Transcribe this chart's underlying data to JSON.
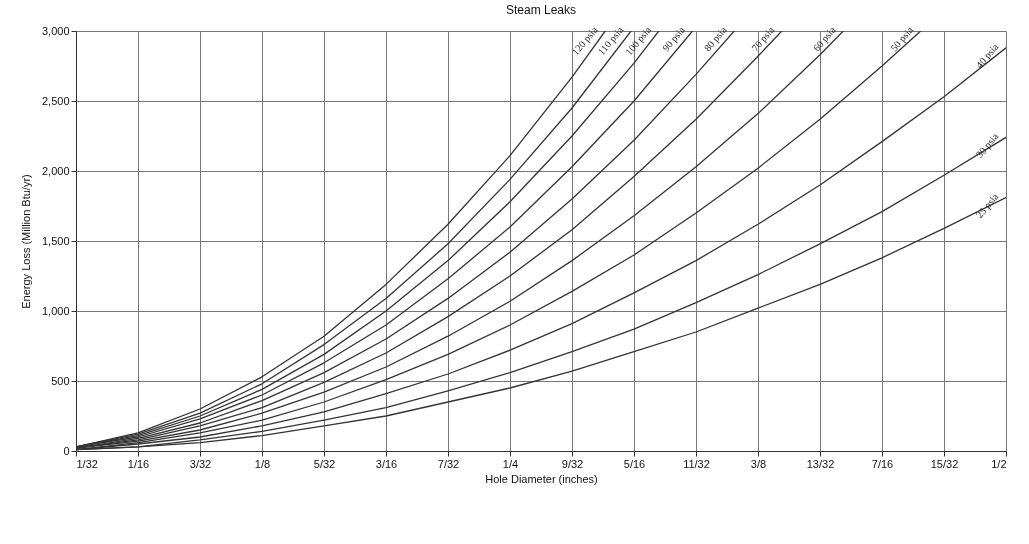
{
  "chart_data": {
    "type": "line",
    "title": "Steam Leaks",
    "xlabel": "Hole Diameter (inches)",
    "ylabel": "Energy Loss (Million Btu/yr)",
    "xlim": [
      0.03125,
      0.5
    ],
    "ylim": [
      0,
      3000
    ],
    "xticks": [
      {
        "value": 0.03125,
        "label": "1/32"
      },
      {
        "value": 0.0625,
        "label": "1/16"
      },
      {
        "value": 0.09375,
        "label": "3/32"
      },
      {
        "value": 0.125,
        "label": "1/8"
      },
      {
        "value": 0.15625,
        "label": "5/32"
      },
      {
        "value": 0.1875,
        "label": "3/16"
      },
      {
        "value": 0.21875,
        "label": "7/32"
      },
      {
        "value": 0.25,
        "label": "1/4"
      },
      {
        "value": 0.28125,
        "label": "9/32"
      },
      {
        "value": 0.3125,
        "label": "5/16"
      },
      {
        "value": 0.34375,
        "label": "11/32"
      },
      {
        "value": 0.375,
        "label": "3/8"
      },
      {
        "value": 0.40625,
        "label": "13/32"
      },
      {
        "value": 0.4375,
        "label": "7/16"
      },
      {
        "value": 0.46875,
        "label": "15/32"
      },
      {
        "value": 0.5,
        "label": "1/2"
      }
    ],
    "yticks": [
      {
        "value": 0,
        "label": "0"
      },
      {
        "value": 500,
        "label": "500"
      },
      {
        "value": 1000,
        "label": "1,000"
      },
      {
        "value": 1500,
        "label": "1,500"
      },
      {
        "value": 2000,
        "label": "2,000"
      },
      {
        "value": 2500,
        "label": "2,500"
      },
      {
        "value": 3000,
        "label": "3,000"
      }
    ],
    "grid": true,
    "legend": false,
    "marker": "none",
    "line_style": "solid",
    "series": [
      {
        "name": "120 psia",
        "color": "#333333",
        "x": [
          0.03125,
          0.0625,
          0.09375,
          0.125,
          0.15625,
          0.1875,
          0.21875,
          0.25,
          0.28125,
          0.298
        ],
        "values": [
          30,
          130,
          300,
          530,
          820,
          1190,
          1620,
          2110,
          2670,
          3000
        ]
      },
      {
        "name": "110 psia",
        "color": "#333333",
        "x": [
          0.03125,
          0.0625,
          0.09375,
          0.125,
          0.15625,
          0.1875,
          0.21875,
          0.25,
          0.28125,
          0.311
        ],
        "values": [
          30,
          120,
          270,
          480,
          760,
          1090,
          1480,
          1940,
          2450,
          3000
        ]
      },
      {
        "name": "100 psia",
        "color": "#333333",
        "x": [
          0.03125,
          0.0625,
          0.09375,
          0.125,
          0.15625,
          0.1875,
          0.21875,
          0.25,
          0.28125,
          0.3125,
          0.325
        ],
        "values": [
          30,
          110,
          250,
          440,
          690,
          1000,
          1360,
          1780,
          2250,
          2770,
          3000
        ]
      },
      {
        "name": "90 psia",
        "color": "#333333",
        "x": [
          0.03125,
          0.0625,
          0.09375,
          0.125,
          0.15625,
          0.1875,
          0.21875,
          0.25,
          0.28125,
          0.3125,
          0.342
        ],
        "values": [
          30,
          100,
          230,
          400,
          630,
          900,
          1230,
          1600,
          2030,
          2500,
          3000
        ]
      },
      {
        "name": "80 psia",
        "color": "#333333",
        "x": [
          0.03125,
          0.0625,
          0.09375,
          0.125,
          0.15625,
          0.1875,
          0.21875,
          0.25,
          0.28125,
          0.3125,
          0.34375,
          0.363
        ],
        "values": [
          20,
          90,
          200,
          360,
          560,
          800,
          1090,
          1420,
          1800,
          2220,
          2690,
          3000
        ]
      },
      {
        "name": "70 psia",
        "color": "#333333",
        "x": [
          0.03125,
          0.0625,
          0.09375,
          0.125,
          0.15625,
          0.1875,
          0.21875,
          0.25,
          0.28125,
          0.3125,
          0.34375,
          0.375,
          0.387
        ],
        "values": [
          20,
          80,
          180,
          310,
          490,
          700,
          960,
          1250,
          1580,
          1960,
          2370,
          2820,
          3000
        ]
      },
      {
        "name": "60 psia",
        "color": "#333333",
        "x": [
          0.03125,
          0.0625,
          0.09375,
          0.125,
          0.15625,
          0.1875,
          0.21875,
          0.25,
          0.28125,
          0.3125,
          0.34375,
          0.375,
          0.40625,
          0.418
        ],
        "values": [
          20,
          70,
          150,
          270,
          420,
          600,
          820,
          1070,
          1360,
          1680,
          2030,
          2410,
          2830,
          3000
        ]
      },
      {
        "name": "50 psia",
        "color": "#333333",
        "x": [
          0.03125,
          0.0625,
          0.09375,
          0.125,
          0.15625,
          0.1875,
          0.21875,
          0.25,
          0.28125,
          0.3125,
          0.34375,
          0.375,
          0.40625,
          0.4375,
          0.457
        ],
        "values": [
          10,
          60,
          130,
          220,
          350,
          510,
          690,
          900,
          1140,
          1400,
          1700,
          2020,
          2370,
          2750,
          3000
        ]
      },
      {
        "name": "40 psia",
        "color": "#333333",
        "x": [
          0.03125,
          0.0625,
          0.09375,
          0.125,
          0.15625,
          0.1875,
          0.21875,
          0.25,
          0.28125,
          0.3125,
          0.34375,
          0.375,
          0.40625,
          0.4375,
          0.46875,
          0.5
        ],
        "values": [
          10,
          50,
          100,
          180,
          280,
          410,
          550,
          720,
          910,
          1130,
          1360,
          1620,
          1900,
          2210,
          2530,
          2880
        ]
      },
      {
        "name": "30 psia",
        "color": "#333333",
        "x": [
          0.03125,
          0.0625,
          0.09375,
          0.125,
          0.15625,
          0.1875,
          0.21875,
          0.25,
          0.28125,
          0.3125,
          0.34375,
          0.375,
          0.40625,
          0.4375,
          0.46875,
          0.5
        ],
        "values": [
          10,
          30,
          80,
          140,
          220,
          310,
          430,
          560,
          710,
          870,
          1060,
          1260,
          1480,
          1710,
          1970,
          2240
        ]
      },
      {
        "name": "25 psia",
        "color": "#333333",
        "x": [
          0.03125,
          0.0625,
          0.09375,
          0.125,
          0.15625,
          0.1875,
          0.21875,
          0.25,
          0.28125,
          0.3125,
          0.34375,
          0.375,
          0.40625,
          0.4375,
          0.46875,
          0.5
        ],
        "values": [
          10,
          30,
          60,
          110,
          180,
          250,
          350,
          450,
          570,
          710,
          850,
          1020,
          1190,
          1380,
          1590,
          1810
        ]
      }
    ]
  }
}
